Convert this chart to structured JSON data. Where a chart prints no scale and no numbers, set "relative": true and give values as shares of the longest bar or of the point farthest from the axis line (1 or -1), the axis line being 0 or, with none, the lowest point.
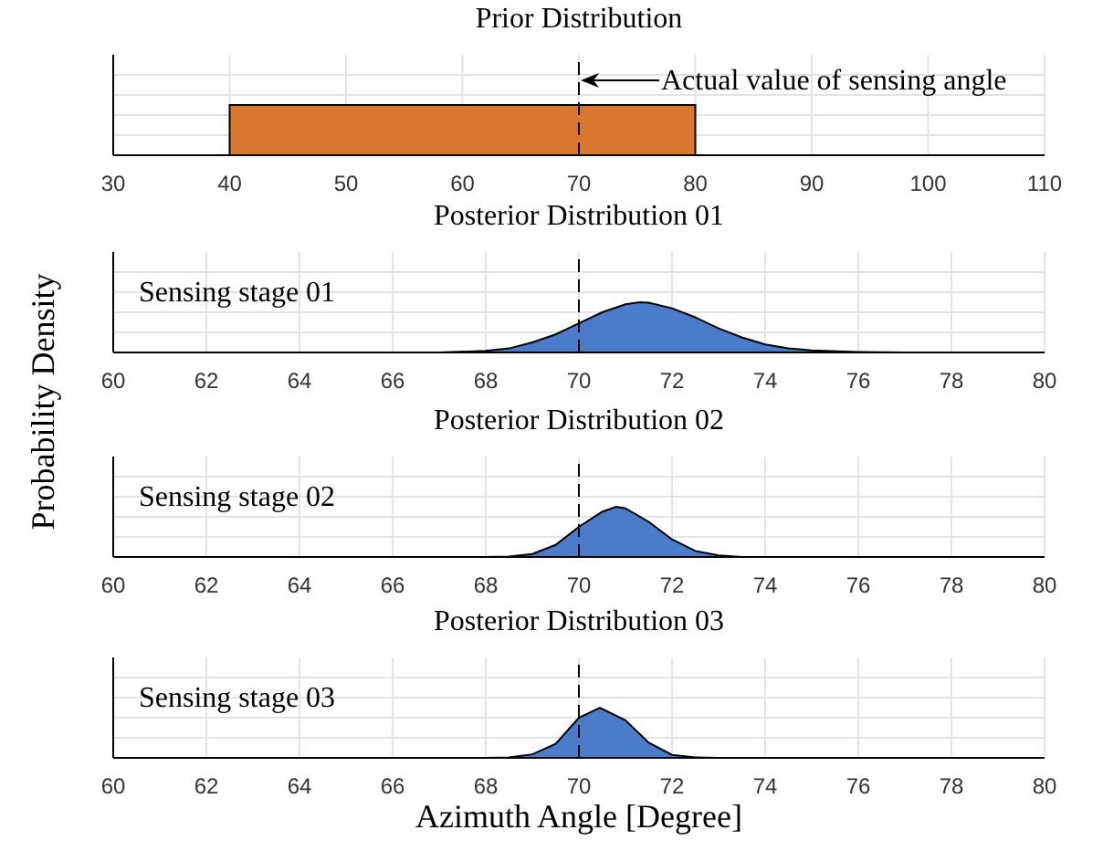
{
  "chart_data": [
    {
      "type": "area",
      "title": "Prior Distribution",
      "ylabel": "Probability Density",
      "relative": true,
      "x": [
        30,
        40,
        40,
        80,
        80,
        110
      ],
      "series": [
        {
          "color": "#d9772e",
          "values": [
            0,
            0,
            1,
            1,
            0,
            0
          ]
        }
      ],
      "xlim": [
        30,
        110
      ],
      "xticks": [
        30,
        40,
        50,
        60,
        70,
        80,
        90,
        100,
        110
      ],
      "grid": true,
      "ref_lines": [
        {
          "axis": "x",
          "value": 70,
          "label": "Actual value of sensing angle",
          "line_style": "dashed",
          "color": "#000000"
        }
      ]
    },
    {
      "type": "area",
      "title": "Posterior Distribution 01",
      "relative": true,
      "x": [
        60,
        67,
        68,
        68.5,
        69,
        69.5,
        70,
        70.5,
        71,
        71.3,
        71.5,
        72,
        72.5,
        73,
        73.5,
        74,
        74.5,
        75,
        76,
        77,
        80
      ],
      "series": [
        {
          "color": "#4a7cc9",
          "values": [
            0,
            0,
            0.03,
            0.08,
            0.2,
            0.36,
            0.58,
            0.8,
            0.96,
            1,
            0.99,
            0.88,
            0.7,
            0.48,
            0.3,
            0.16,
            0.08,
            0.04,
            0.01,
            0,
            0
          ]
        }
      ],
      "xlim": [
        60,
        80
      ],
      "xticks": [
        60,
        62,
        64,
        66,
        68,
        70,
        72,
        74,
        76,
        78,
        80
      ],
      "grid": true,
      "annotations": [
        "Sensing stage 01"
      ],
      "ref_lines": [
        {
          "axis": "x",
          "value": 70,
          "line_style": "dashed",
          "color": "#000000"
        }
      ]
    },
    {
      "type": "area",
      "title": "Posterior Distribution 02",
      "relative": true,
      "x": [
        60,
        68,
        68.5,
        69,
        69.5,
        70,
        70.5,
        70.8,
        71,
        71.5,
        72,
        72.5,
        73,
        73.5,
        80
      ],
      "series": [
        {
          "color": "#4a7cc9",
          "values": [
            0,
            0,
            0.01,
            0.06,
            0.24,
            0.6,
            0.9,
            1,
            0.97,
            0.7,
            0.35,
            0.12,
            0.03,
            0,
            0
          ]
        }
      ],
      "xlim": [
        60,
        80
      ],
      "xticks": [
        60,
        62,
        64,
        66,
        68,
        70,
        72,
        74,
        76,
        78,
        80
      ],
      "grid": true,
      "annotations": [
        "Sensing stage 02"
      ],
      "ref_lines": [
        {
          "axis": "x",
          "value": 70,
          "line_style": "dashed",
          "color": "#000000"
        }
      ]
    },
    {
      "type": "area",
      "title": "Posterior Distribution 03",
      "xlabel": "Azimuth Angle [Degree]",
      "relative": true,
      "x": [
        60,
        68,
        68.5,
        69,
        69.5,
        70,
        70.45,
        71,
        71.5,
        72,
        72.5,
        73,
        80
      ],
      "series": [
        {
          "color": "#4a7cc9",
          "values": [
            0,
            0,
            0.01,
            0.07,
            0.28,
            0.8,
            1,
            0.75,
            0.3,
            0.06,
            0.01,
            0,
            0
          ]
        }
      ],
      "xlim": [
        60,
        80
      ],
      "xticks": [
        60,
        62,
        64,
        66,
        68,
        70,
        72,
        74,
        76,
        78,
        80
      ],
      "grid": true,
      "annotations": [
        "Sensing stage 03"
      ],
      "ref_lines": [
        {
          "axis": "x",
          "value": 70,
          "line_style": "dashed",
          "color": "#000000"
        }
      ]
    }
  ]
}
